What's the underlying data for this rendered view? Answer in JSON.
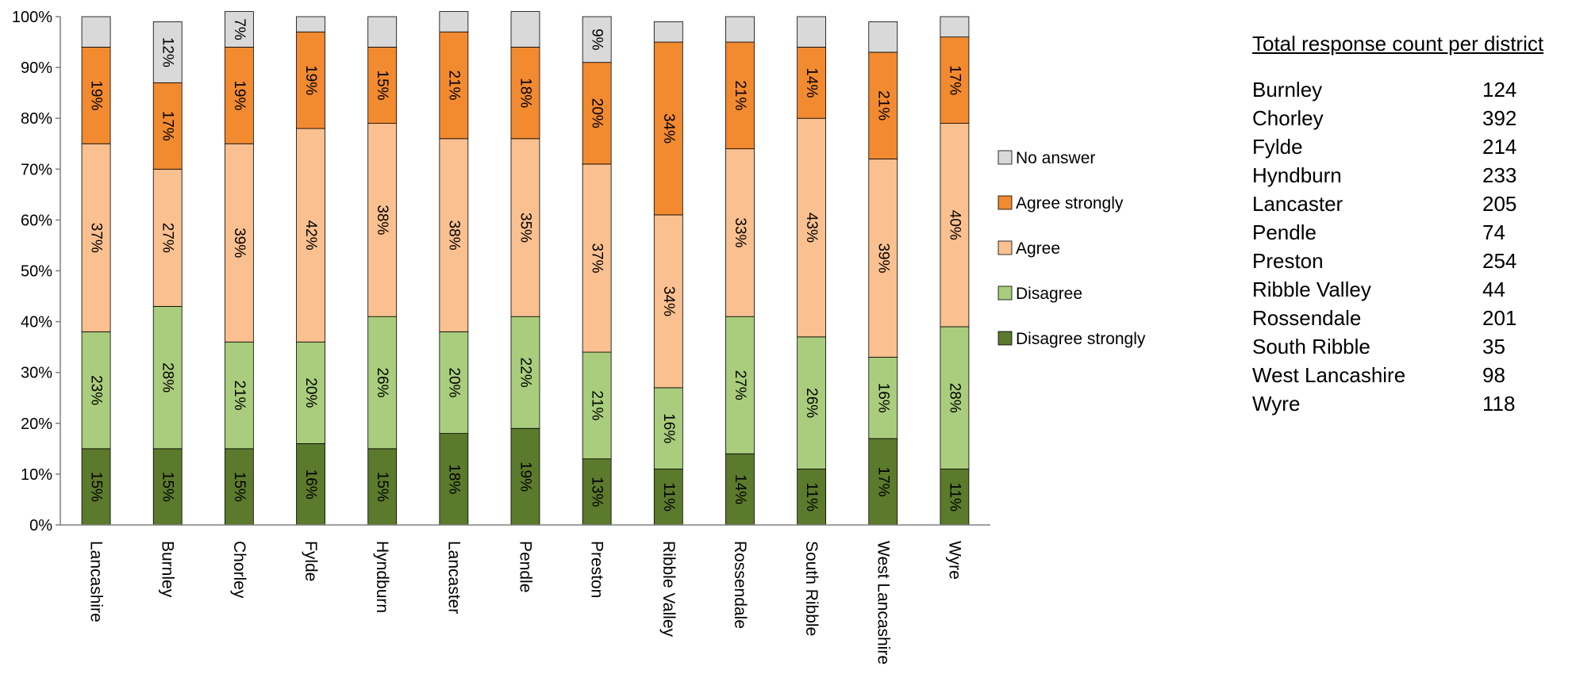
{
  "chart_data": {
    "type": "bar",
    "stacked": true,
    "orientation": "vertical",
    "categories": [
      "Lancashire",
      "Burnley",
      "Chorley",
      "Fylde",
      "Hyndburn",
      "Lancaster",
      "Pendle",
      "Preston",
      "Ribble Valley",
      "Rossendale",
      "South Ribble",
      "West Lancashire",
      "Wyre"
    ],
    "series": [
      {
        "name": "Disagree strongly",
        "color": "#5b7a2c",
        "values": [
          15,
          15,
          15,
          16,
          15,
          18,
          19,
          13,
          11,
          14,
          11,
          17,
          11
        ],
        "labels": [
          "15%",
          "15%",
          "15%",
          "16%",
          "15%",
          "18%",
          "19%",
          "13%",
          "11%",
          "14%",
          "11%",
          "17%",
          "11%"
        ]
      },
      {
        "name": "Disagree",
        "color": "#a9cd7c",
        "values": [
          23,
          28,
          21,
          20,
          26,
          20,
          22,
          21,
          16,
          27,
          26,
          16,
          28
        ],
        "labels": [
          "23%",
          "28%",
          "21%",
          "20%",
          "26%",
          "20%",
          "22%",
          "21%",
          "16%",
          "27%",
          "26%",
          "16%",
          "28%"
        ]
      },
      {
        "name": "Agree",
        "color": "#fac090",
        "values": [
          37,
          27,
          39,
          42,
          38,
          38,
          35,
          37,
          34,
          33,
          43,
          39,
          40
        ],
        "labels": [
          "37%",
          "27%",
          "39%",
          "42%",
          "38%",
          "38%",
          "35%",
          "37%",
          "34%",
          "33%",
          "43%",
          "39%",
          "40%"
        ]
      },
      {
        "name": "Agree strongly",
        "color": "#f28a30",
        "values": [
          19,
          17,
          19,
          19,
          15,
          21,
          18,
          20,
          34,
          21,
          14,
          21,
          17
        ],
        "labels": [
          "19%",
          "17%",
          "19%",
          "19%",
          "15%",
          "21%",
          "18%",
          "20%",
          "34%",
          "21%",
          "14%",
          "21%",
          "17%"
        ]
      },
      {
        "name": "No answer",
        "color": "#d9d9d9",
        "values": [
          6,
          12,
          7,
          3,
          6,
          4,
          7,
          9,
          4,
          5,
          6,
          6,
          4
        ],
        "labels": [
          "",
          "12%",
          "7%",
          "",
          "",
          "",
          "",
          "9%",
          "",
          "",
          "",
          "",
          ""
        ]
      }
    ],
    "legend_order": [
      "No answer",
      "Agree strongly",
      "Agree",
      "Disagree",
      "Disagree strongly"
    ],
    "y_ticks": [
      "0%",
      "10%",
      "20%",
      "30%",
      "40%",
      "50%",
      "60%",
      "70%",
      "80%",
      "90%",
      "100%"
    ],
    "ylim": [
      0,
      100
    ],
    "grid": false,
    "legend_position": "right"
  },
  "side_table": {
    "title": "Total response count per district",
    "rows": [
      {
        "name": "Burnley",
        "count": "124"
      },
      {
        "name": "Chorley",
        "count": "392"
      },
      {
        "name": "Fylde",
        "count": "214"
      },
      {
        "name": "Hyndburn",
        "count": "233"
      },
      {
        "name": "Lancaster",
        "count": "205"
      },
      {
        "name": "Pendle",
        "count": "74"
      },
      {
        "name": "Preston",
        "count": "254"
      },
      {
        "name": "Ribble Valley",
        "count": "44"
      },
      {
        "name": "Rossendale",
        "count": "201"
      },
      {
        "name": "South Ribble",
        "count": "35"
      },
      {
        "name": "West Lancashire",
        "count": "98"
      },
      {
        "name": "Wyre",
        "count": "118"
      }
    ]
  }
}
